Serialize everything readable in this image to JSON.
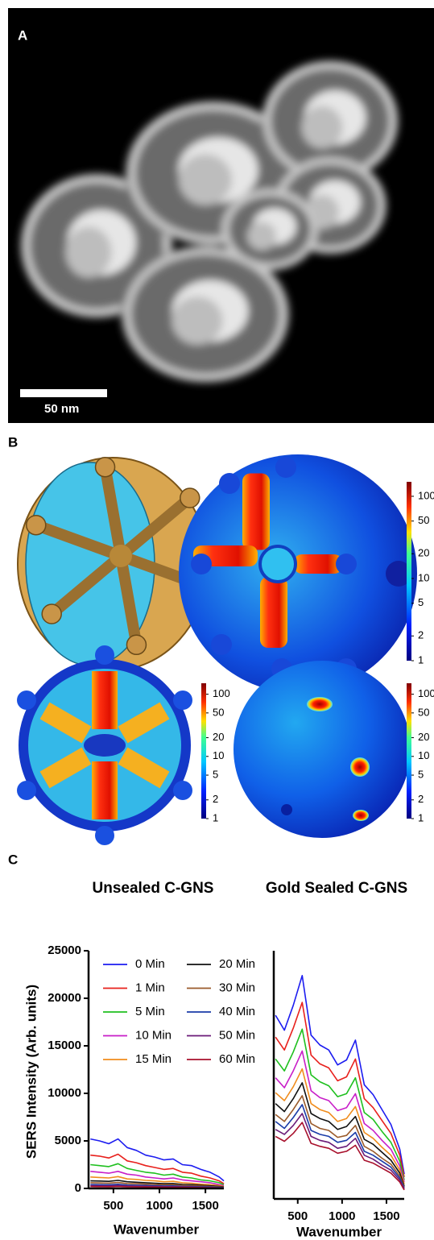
{
  "panels": {
    "a": {
      "label": "A",
      "scale_bar": "50 nm"
    },
    "b": {
      "label": "B",
      "colorbar": {
        "scale": "log",
        "lim": [
          1,
          150
        ],
        "ticks": [
          1,
          2,
          5,
          10,
          20,
          50,
          100
        ]
      }
    },
    "c": {
      "label": "C"
    }
  },
  "chart_data": [
    {
      "type": "line",
      "title": "Unsealed C-GNS",
      "ylabel": "SERS Intensity (Arb. units)",
      "xlabel": "Wavenumber",
      "xlim": [
        230,
        1700
      ],
      "ylim": [
        0,
        25000
      ],
      "xticks": [
        500,
        1000,
        1500
      ],
      "yticks": [
        0,
        5000,
        10000,
        15000,
        20000,
        25000
      ],
      "legend": "upper left",
      "x": [
        250,
        350,
        450,
        550,
        650,
        750,
        850,
        950,
        1050,
        1150,
        1250,
        1350,
        1450,
        1550,
        1650,
        1700
      ],
      "series": [
        {
          "name": "0 Min",
          "color": "#1c1cf0",
          "values": [
            5200,
            5000,
            4700,
            5200,
            4300,
            4000,
            3500,
            3300,
            3000,
            3100,
            2500,
            2400,
            2000,
            1700,
            1200,
            800
          ]
        },
        {
          "name": "1 Min",
          "color": "#e8201c",
          "values": [
            3500,
            3400,
            3200,
            3600,
            2900,
            2700,
            2400,
            2200,
            2000,
            2100,
            1700,
            1600,
            1300,
            1100,
            800,
            500
          ]
        },
        {
          "name": "5 Min",
          "color": "#1fc01f",
          "values": [
            2500,
            2400,
            2300,
            2600,
            2100,
            1900,
            1700,
            1600,
            1400,
            1500,
            1200,
            1100,
            900,
            800,
            600,
            400
          ]
        },
        {
          "name": "10 Min",
          "color": "#c81ec8",
          "values": [
            1800,
            1700,
            1600,
            1800,
            1500,
            1400,
            1200,
            1100,
            1000,
            1100,
            900,
            800,
            700,
            600,
            400,
            300
          ]
        },
        {
          "name": "15 Min",
          "color": "#f08c1c",
          "values": [
            1200,
            1150,
            1100,
            1250,
            1000,
            950,
            850,
            800,
            700,
            750,
            600,
            550,
            450,
            400,
            300,
            200
          ]
        },
        {
          "name": "20 Min",
          "color": "#111111",
          "values": [
            800,
            780,
            750,
            850,
            700,
            650,
            600,
            550,
            500,
            520,
            420,
            400,
            330,
            280,
            200,
            150
          ]
        },
        {
          "name": "30 Min",
          "color": "#9a5a2a",
          "values": [
            600,
            580,
            560,
            630,
            520,
            490,
            450,
            410,
            380,
            390,
            320,
            300,
            250,
            210,
            150,
            110
          ]
        },
        {
          "name": "40 Min",
          "color": "#1a3ca8",
          "values": [
            420,
            400,
            390,
            440,
            360,
            340,
            310,
            290,
            260,
            270,
            220,
            210,
            170,
            150,
            110,
            80
          ]
        },
        {
          "name": "50 Min",
          "color": "#6a1a78",
          "values": [
            300,
            290,
            280,
            310,
            260,
            240,
            220,
            200,
            190,
            190,
            160,
            150,
            120,
            100,
            80,
            60
          ]
        },
        {
          "name": "60 Min",
          "color": "#a8102c",
          "values": [
            200,
            190,
            180,
            210,
            170,
            160,
            150,
            140,
            130,
            130,
            110,
            100,
            80,
            70,
            50,
            40
          ]
        }
      ]
    },
    {
      "type": "line",
      "title": "Gold Sealed C-GNS",
      "xlabel": "Wavenumber",
      "xlim": [
        230,
        1700
      ],
      "ylim": [
        0,
        25000
      ],
      "xticks": [
        500,
        1000,
        1500
      ],
      "x": [
        250,
        350,
        450,
        550,
        650,
        750,
        850,
        950,
        1050,
        1150,
        1250,
        1350,
        1450,
        1550,
        1650,
        1700
      ],
      "series": [
        {
          "color": "#1c1cf0",
          "values": [
            18500,
            17000,
            19500,
            22500,
            16500,
            15500,
            15000,
            13500,
            14000,
            16000,
            11500,
            10500,
            9000,
            7500,
            5000,
            2500
          ]
        },
        {
          "color": "#e8201c",
          "values": [
            16300,
            15000,
            17200,
            19800,
            14500,
            13600,
            13200,
            11900,
            12300,
            14100,
            10100,
            9200,
            7900,
            6600,
            4400,
            2200
          ]
        },
        {
          "color": "#1fc01f",
          "values": [
            14100,
            12900,
            14800,
            17100,
            12500,
            11800,
            11400,
            10300,
            10600,
            12200,
            8700,
            8000,
            6800,
            5700,
            3800,
            1900
          ]
        },
        {
          "color": "#c81ec8",
          "values": [
            12200,
            11200,
            12900,
            14900,
            10900,
            10200,
            9900,
            8900,
            9200,
            10600,
            7600,
            6900,
            5900,
            5000,
            3300,
            1700
          ]
        },
        {
          "color": "#f08c1c",
          "values": [
            10700,
            9900,
            11300,
            13100,
            9600,
            9000,
            8700,
            7800,
            8100,
            9300,
            6700,
            6100,
            5200,
            4400,
            2900,
            1500
          ]
        },
        {
          "color": "#111111",
          "values": [
            9600,
            8800,
            10100,
            11700,
            8600,
            8100,
            7800,
            7000,
            7300,
            8300,
            6000,
            5500,
            4700,
            3900,
            2600,
            1300
          ]
        },
        {
          "color": "#9a5a2a",
          "values": [
            8500,
            7800,
            9000,
            10400,
            7600,
            7100,
            6900,
            6200,
            6400,
            7400,
            5300,
            4800,
            4100,
            3500,
            2300,
            1200
          ]
        },
        {
          "color": "#1a3ca8",
          "values": [
            7800,
            7100,
            8200,
            9500,
            6900,
            6500,
            6300,
            5700,
            5900,
            6700,
            4800,
            4400,
            3800,
            3200,
            2100,
            1100
          ]
        },
        {
          "color": "#6a1a78",
          "values": [
            7000,
            6500,
            7400,
            8600,
            6300,
            5900,
            5700,
            5100,
            5300,
            6100,
            4400,
            4000,
            3400,
            2900,
            1900,
            1000
          ]
        },
        {
          "color": "#a8102c",
          "values": [
            6300,
            5800,
            6600,
            7700,
            5600,
            5300,
            5100,
            4600,
            4800,
            5400,
            3900,
            3600,
            3100,
            2600,
            1700,
            900
          ]
        }
      ]
    }
  ]
}
